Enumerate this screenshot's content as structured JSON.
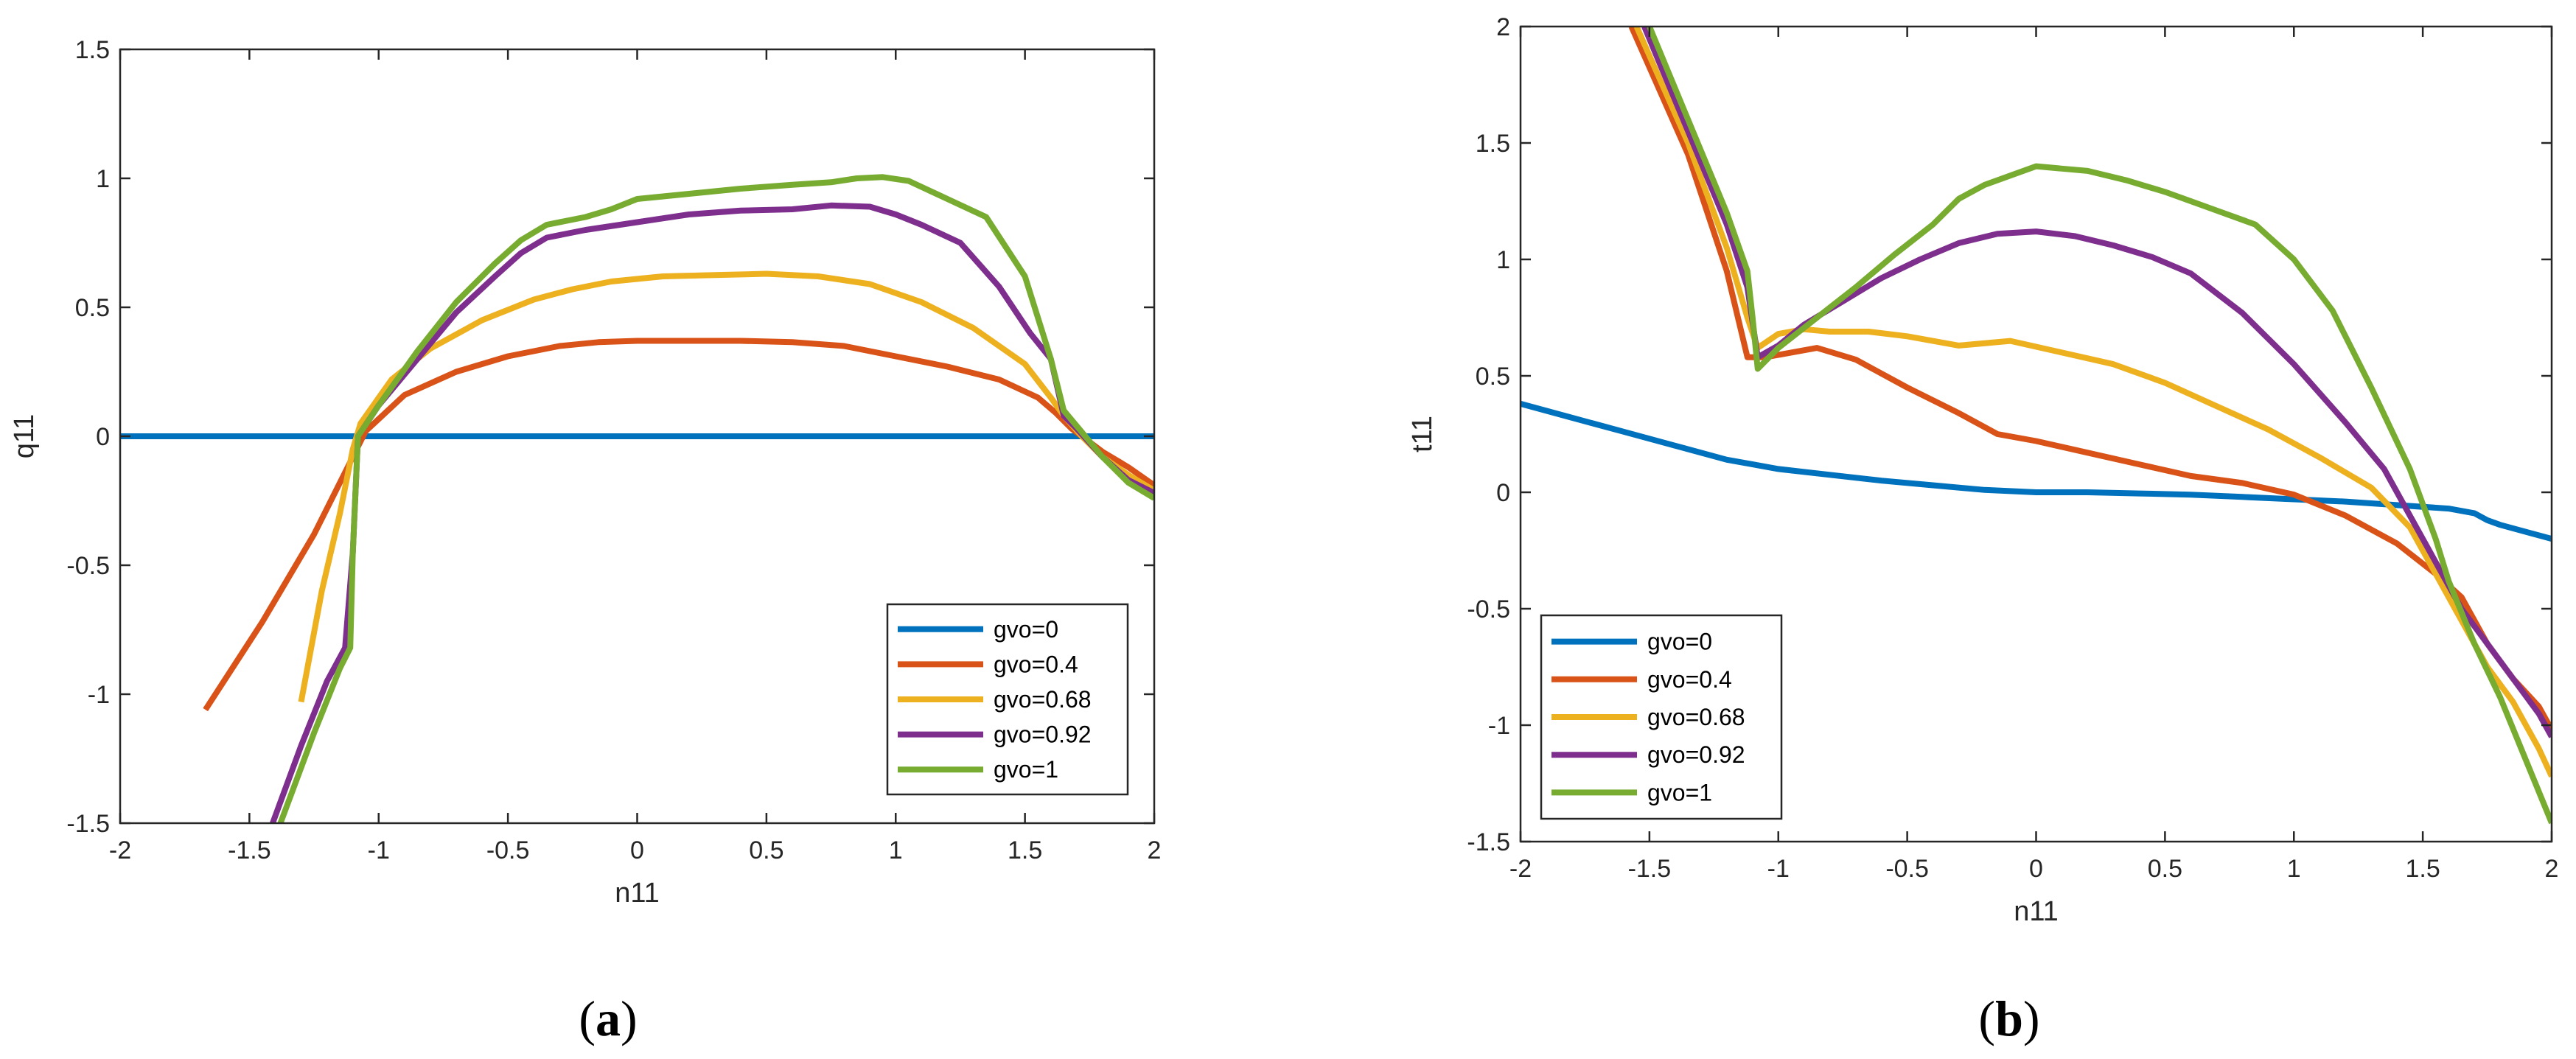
{
  "colors": {
    "gvo=0": "#0072BD",
    "gvo=0.4": "#D95319",
    "gvo=0.68": "#EDB120",
    "gvo=0.92": "#7E2F8E",
    "gvo=1": "#77AC30"
  },
  "chart_data": [
    {
      "type": "line",
      "title": "",
      "caption": "a",
      "xlabel": "n11",
      "ylabel": "q11",
      "xlim": [
        -2,
        2
      ],
      "ylim": [
        -1.5,
        1.5
      ],
      "xticks": [
        -2,
        -1.5,
        -1,
        -0.5,
        0,
        0.5,
        1,
        1.5,
        2
      ],
      "yticks": [
        -1.5,
        -1,
        -0.5,
        0,
        0.5,
        1,
        1.5
      ],
      "legend_position": "bottom-right",
      "series": [
        {
          "name": "gvo=0",
          "x": [
            -2,
            2
          ],
          "y": [
            0,
            0
          ]
        },
        {
          "name": "gvo=0.4",
          "x": [
            -1.67,
            -1.45,
            -1.25,
            -1.12,
            -1.05,
            -0.9,
            -0.7,
            -0.5,
            -0.3,
            -0.15,
            0,
            0.2,
            0.4,
            0.6,
            0.8,
            1.0,
            1.2,
            1.4,
            1.55,
            1.62,
            1.68,
            1.72,
            1.8,
            1.9,
            2.0
          ],
          "y": [
            -1.06,
            -0.72,
            -0.38,
            -0.12,
            0.02,
            0.16,
            0.25,
            0.31,
            0.35,
            0.365,
            0.37,
            0.37,
            0.37,
            0.365,
            0.35,
            0.31,
            0.27,
            0.22,
            0.15,
            0.09,
            0.03,
            0.0,
            -0.06,
            -0.12,
            -0.19
          ]
        },
        {
          "name": "gvo=0.68",
          "x": [
            -1.3,
            -1.22,
            -1.15,
            -1.1,
            -1.07,
            -0.95,
            -0.8,
            -0.6,
            -0.4,
            -0.25,
            -0.1,
            0.1,
            0.3,
            0.5,
            0.7,
            0.9,
            1.1,
            1.3,
            1.5,
            1.6,
            1.65,
            1.72,
            1.8,
            1.9,
            2.0
          ],
          "y": [
            -1.03,
            -0.6,
            -0.3,
            -0.05,
            0.05,
            0.22,
            0.34,
            0.45,
            0.53,
            0.57,
            0.6,
            0.62,
            0.625,
            0.63,
            0.62,
            0.59,
            0.52,
            0.42,
            0.28,
            0.15,
            0.08,
            0.0,
            -0.08,
            -0.15,
            -0.21
          ]
        },
        {
          "name": "gvo=0.92",
          "x": [
            -1.41,
            -1.3,
            -1.2,
            -1.13,
            -1.1,
            -1.08,
            -1.0,
            -0.85,
            -0.7,
            -0.55,
            -0.45,
            -0.35,
            -0.2,
            0,
            0.2,
            0.4,
            0.6,
            0.75,
            0.9,
            1.0,
            1.1,
            1.25,
            1.4,
            1.52,
            1.6,
            1.65,
            1.7,
            1.8,
            1.9,
            2.0
          ],
          "y": [
            -1.5,
            -1.2,
            -0.95,
            -0.82,
            -0.45,
            0.0,
            0.12,
            0.3,
            0.48,
            0.62,
            0.71,
            0.77,
            0.8,
            0.83,
            0.86,
            0.875,
            0.88,
            0.895,
            0.89,
            0.86,
            0.82,
            0.75,
            0.58,
            0.4,
            0.3,
            0.08,
            0.03,
            -0.08,
            -0.17,
            -0.22
          ]
        },
        {
          "name": "gvo=1",
          "x": [
            -1.38,
            -1.25,
            -1.15,
            -1.11,
            -1.1,
            -1.08,
            -1.0,
            -0.85,
            -0.7,
            -0.55,
            -0.45,
            -0.35,
            -0.2,
            -0.1,
            0,
            0.2,
            0.4,
            0.6,
            0.75,
            0.85,
            0.95,
            1.05,
            1.2,
            1.35,
            1.5,
            1.6,
            1.65,
            1.7,
            1.8,
            1.9,
            2.0
          ],
          "y": [
            -1.5,
            -1.15,
            -0.9,
            -0.82,
            -0.45,
            0.0,
            0.12,
            0.33,
            0.52,
            0.67,
            0.76,
            0.82,
            0.85,
            0.88,
            0.92,
            0.94,
            0.96,
            0.975,
            0.985,
            1.0,
            1.005,
            0.99,
            0.92,
            0.85,
            0.62,
            0.3,
            0.1,
            0.04,
            -0.08,
            -0.18,
            -0.24
          ]
        }
      ]
    },
    {
      "type": "line",
      "title": "",
      "caption": "b",
      "xlabel": "n11",
      "ylabel": "t11",
      "xlim": [
        -2,
        2
      ],
      "ylim": [
        -1.5,
        2
      ],
      "xticks": [
        -2,
        -1.5,
        -1,
        -0.5,
        0,
        0.5,
        1,
        1.5,
        2
      ],
      "yticks": [
        -1.5,
        -1,
        -0.5,
        0,
        0.5,
        1,
        1.5,
        2
      ],
      "legend_position": "bottom-left",
      "series": [
        {
          "name": "gvo=0",
          "x": [
            -2,
            -1.8,
            -1.6,
            -1.4,
            -1.2,
            -1.1,
            -1.0,
            -0.8,
            -0.6,
            -0.4,
            -0.2,
            0,
            0.2,
            0.4,
            0.6,
            0.8,
            1.0,
            1.2,
            1.4,
            1.6,
            1.7,
            1.75,
            1.8,
            2.0
          ],
          "y": [
            0.38,
            0.32,
            0.26,
            0.2,
            0.14,
            0.12,
            0.1,
            0.075,
            0.05,
            0.03,
            0.01,
            0.0,
            0.0,
            -0.005,
            -0.01,
            -0.02,
            -0.03,
            -0.04,
            -0.055,
            -0.07,
            -0.09,
            -0.12,
            -0.14,
            -0.2
          ]
        },
        {
          "name": "gvo=0.4",
          "x": [
            -1.57,
            -1.35,
            -1.2,
            -1.12,
            -1.05,
            -0.95,
            -0.85,
            -0.7,
            -0.5,
            -0.3,
            -0.15,
            0,
            0.2,
            0.4,
            0.6,
            0.8,
            1.0,
            1.2,
            1.4,
            1.55,
            1.65,
            1.75,
            1.85,
            1.95,
            2.0
          ],
          "y": [
            2.0,
            1.45,
            0.95,
            0.58,
            0.58,
            0.6,
            0.62,
            0.57,
            0.45,
            0.34,
            0.25,
            0.22,
            0.17,
            0.12,
            0.07,
            0.04,
            -0.01,
            -0.1,
            -0.22,
            -0.35,
            -0.45,
            -0.65,
            -0.8,
            -0.92,
            -1.02
          ]
        },
        {
          "name": "gvo=0.68",
          "x": [
            -1.55,
            -1.35,
            -1.2,
            -1.12,
            -1.08,
            -1.0,
            -0.9,
            -0.8,
            -0.65,
            -0.5,
            -0.3,
            -0.1,
            0.1,
            0.3,
            0.5,
            0.7,
            0.9,
            1.1,
            1.3,
            1.45,
            1.55,
            1.65,
            1.75,
            1.85,
            1.95,
            2.0
          ],
          "y": [
            2.0,
            1.5,
            1.05,
            0.75,
            0.62,
            0.68,
            0.7,
            0.69,
            0.69,
            0.67,
            0.63,
            0.65,
            0.6,
            0.55,
            0.47,
            0.37,
            0.27,
            0.15,
            0.02,
            -0.15,
            -0.35,
            -0.55,
            -0.75,
            -0.9,
            -1.1,
            -1.22
          ]
        },
        {
          "name": "gvo=0.92",
          "x": [
            -1.52,
            -1.35,
            -1.2,
            -1.12,
            -1.08,
            -1.0,
            -0.9,
            -0.75,
            -0.6,
            -0.45,
            -0.3,
            -0.15,
            0,
            0.15,
            0.3,
            0.45,
            0.6,
            0.8,
            1.0,
            1.2,
            1.35,
            1.45,
            1.55,
            1.65,
            1.75,
            1.85,
            1.95,
            2.0
          ],
          "y": [
            2.0,
            1.55,
            1.15,
            0.88,
            0.58,
            0.63,
            0.72,
            0.82,
            0.92,
            1.0,
            1.07,
            1.11,
            1.12,
            1.1,
            1.06,
            1.01,
            0.94,
            0.77,
            0.55,
            0.3,
            0.1,
            -0.1,
            -0.3,
            -0.5,
            -0.65,
            -0.8,
            -0.95,
            -1.05
          ]
        },
        {
          "name": "gvo=1",
          "x": [
            -1.5,
            -1.35,
            -1.2,
            -1.12,
            -1.1,
            -1.08,
            -1.0,
            -0.85,
            -0.7,
            -0.55,
            -0.4,
            -0.3,
            -0.2,
            -0.1,
            0,
            0.1,
            0.2,
            0.35,
            0.5,
            0.7,
            0.85,
            1.0,
            1.15,
            1.3,
            1.45,
            1.55,
            1.6,
            1.7,
            1.8,
            1.9,
            2.0
          ],
          "y": [
            2.0,
            1.6,
            1.2,
            0.95,
            0.75,
            0.53,
            0.62,
            0.75,
            0.88,
            1.02,
            1.15,
            1.26,
            1.32,
            1.36,
            1.4,
            1.39,
            1.38,
            1.34,
            1.29,
            1.21,
            1.15,
            1.0,
            0.78,
            0.45,
            0.1,
            -0.2,
            -0.38,
            -0.65,
            -0.88,
            -1.15,
            -1.42
          ]
        }
      ]
    }
  ]
}
